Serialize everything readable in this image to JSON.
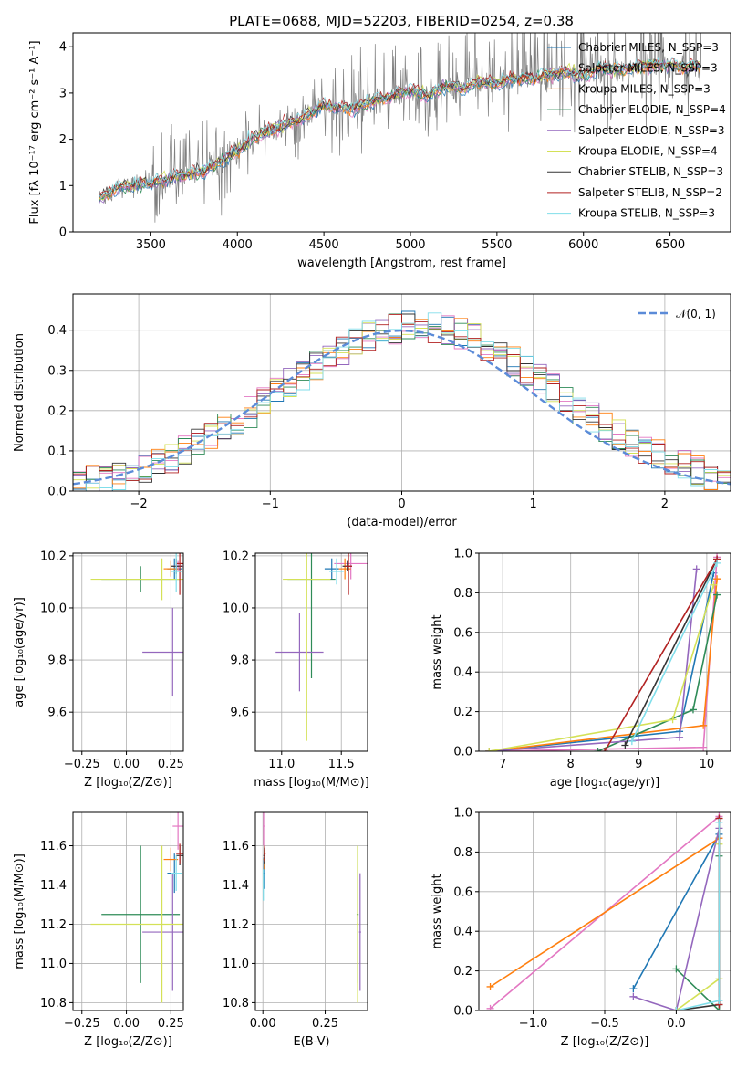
{
  "chart_data": [
    {
      "id": "spectrum",
      "type": "line",
      "title": "PLATE=0688, MJD=52203, FIBERID=0254, z=0.38",
      "xlabel": "wavelength [Angstrom, rest frame]",
      "ylabel": "Flux [fλ 10⁻¹⁷ erg cm⁻² s⁻¹ A⁻¹]",
      "xlim": [
        3050,
        6850
      ],
      "ylim": [
        0,
        4.3
      ],
      "xticks": [
        "3500",
        "4000",
        "4500",
        "5000",
        "5500",
        "6000",
        "6500"
      ],
      "yticks": [
        "0",
        "1",
        "2",
        "3",
        "4"
      ],
      "grid": false,
      "legend_position": "top-right",
      "observed": {
        "color": "#808080",
        "x": [
          3200,
          3300,
          3400,
          3500,
          3600,
          3700,
          3800,
          3900,
          4000,
          4100,
          4200,
          4300,
          4400,
          4500,
          4600,
          4700,
          4800,
          4900,
          5000,
          5100,
          5200,
          5300,
          5400,
          5500,
          5600,
          5700,
          5800,
          5900,
          6000,
          6100,
          6200,
          6300,
          6400,
          6500,
          6600,
          6680
        ],
        "y": [
          0.7,
          0.95,
          1.0,
          1.05,
          1.15,
          1.25,
          1.3,
          1.5,
          1.75,
          2.05,
          2.2,
          2.35,
          2.5,
          2.75,
          2.65,
          2.7,
          2.85,
          2.95,
          3.05,
          2.95,
          3.15,
          3.1,
          3.25,
          3.2,
          3.3,
          3.3,
          3.4,
          3.45,
          3.35,
          3.55,
          3.5,
          3.55,
          3.6,
          3.6,
          3.55,
          3.6
        ]
      },
      "series": [
        {
          "name": "Chabrier MILES, N_SSP=3",
          "color": "#1f77b4"
        },
        {
          "name": "Salpeter MILES, N_SSP=3",
          "color": "#e377c2"
        },
        {
          "name": "Kroupa MILES, N_SSP=3",
          "color": "#ff7f0e"
        },
        {
          "name": "Chabrier ELODIE, N_SSP=4",
          "color": "#2e8b57"
        },
        {
          "name": "Salpeter ELODIE, N_SSP=3",
          "color": "#9467bd"
        },
        {
          "name": "Kroupa ELODIE, N_SSP=4",
          "color": "#d4e157"
        },
        {
          "name": "Chabrier STELIB, N_SSP=3",
          "color": "#333333"
        },
        {
          "name": "Salpeter STELIB, N_SSP=2",
          "color": "#b22222"
        },
        {
          "name": "Kroupa STELIB, N_SSP=3",
          "color": "#80deea"
        }
      ]
    },
    {
      "id": "residuals",
      "type": "histogram",
      "xlabel": "(data-model)/error",
      "ylabel": "Normed distribution",
      "xlim": [
        -2.5,
        2.5
      ],
      "ylim": [
        0,
        0.49
      ],
      "xticks": [
        "−2",
        "−1",
        "0",
        "1",
        "2"
      ],
      "yticks": [
        "0.0",
        "0.1",
        "0.2",
        "0.3",
        "0.4"
      ],
      "grid": true,
      "legend_position": "top-right",
      "legend_label": "𝒩(0, 1)",
      "bin_width": 0.1
    },
    {
      "id": "age-vs-Z",
      "type": "errorbar",
      "xlabel": "Z [log₁₀(Z/Z⊙)]",
      "ylabel": "age [log₁₀(age/yr)]",
      "xlim": [
        -0.3,
        0.32
      ],
      "ylim": [
        9.45,
        10.21
      ],
      "xticks": [
        "−0.25",
        "0.00",
        "0.25"
      ],
      "yticks": [
        "9.6",
        "9.8",
        "10.0",
        "10.2"
      ],
      "grid": true
    },
    {
      "id": "age-vs-mass",
      "type": "errorbar",
      "xlabel": "mass [log₁₀(M/M⊙)]",
      "xlim": [
        10.78,
        11.72
      ],
      "ylim": [
        9.45,
        10.21
      ],
      "xticks": [
        "11.0",
        "11.5"
      ],
      "yticks": [
        "9.6",
        "9.8",
        "10.0",
        "10.2"
      ],
      "grid": true
    },
    {
      "id": "weight-vs-age",
      "type": "line",
      "xlabel": "age [log₁₀(age/yr)]",
      "ylabel": "mass weight",
      "xlim": [
        6.65,
        10.35
      ],
      "ylim": [
        0,
        1.0
      ],
      "xticks": [
        "7",
        "8",
        "9",
        "10"
      ],
      "yticks": [
        "0.0",
        "0.2",
        "0.4",
        "0.6",
        "0.8",
        "1.0"
      ],
      "grid": true
    },
    {
      "id": "mass-vs-Z",
      "type": "errorbar",
      "xlabel": "Z [log₁₀(Z/Z⊙)]",
      "ylabel": "mass [log₁₀(M/M⊙)]",
      "xlim": [
        -0.3,
        0.32
      ],
      "ylim": [
        10.76,
        11.77
      ],
      "xticks": [
        "−0.25",
        "0.00",
        "0.25"
      ],
      "yticks": [
        "10.8",
        "11.0",
        "11.2",
        "11.4",
        "11.6"
      ],
      "grid": true
    },
    {
      "id": "mass-vs-ebv",
      "type": "errorbar",
      "xlabel": "E(B-V)",
      "xlim": [
        -0.03,
        0.42
      ],
      "ylim": [
        10.76,
        11.77
      ],
      "xticks": [
        "0.00",
        "0.25"
      ],
      "yticks": [
        "10.8",
        "11.0",
        "11.2",
        "11.4",
        "11.6"
      ],
      "grid": true
    },
    {
      "id": "weight-vs-Z",
      "type": "line",
      "xlabel": "Z [log₁₀(Z/Z⊙)]",
      "ylabel": "mass weight",
      "xlim": [
        -1.38,
        0.38
      ],
      "ylim": [
        0,
        1.0
      ],
      "xticks": [
        "−1.0",
        "−0.5",
        "0.0"
      ],
      "yticks": [
        "0.0",
        "0.2",
        "0.4",
        "0.6",
        "0.8",
        "1.0"
      ],
      "grid": true
    }
  ],
  "colors": {
    "gaussian": "#5b8bd8",
    "grid": "#b0b0b0"
  }
}
